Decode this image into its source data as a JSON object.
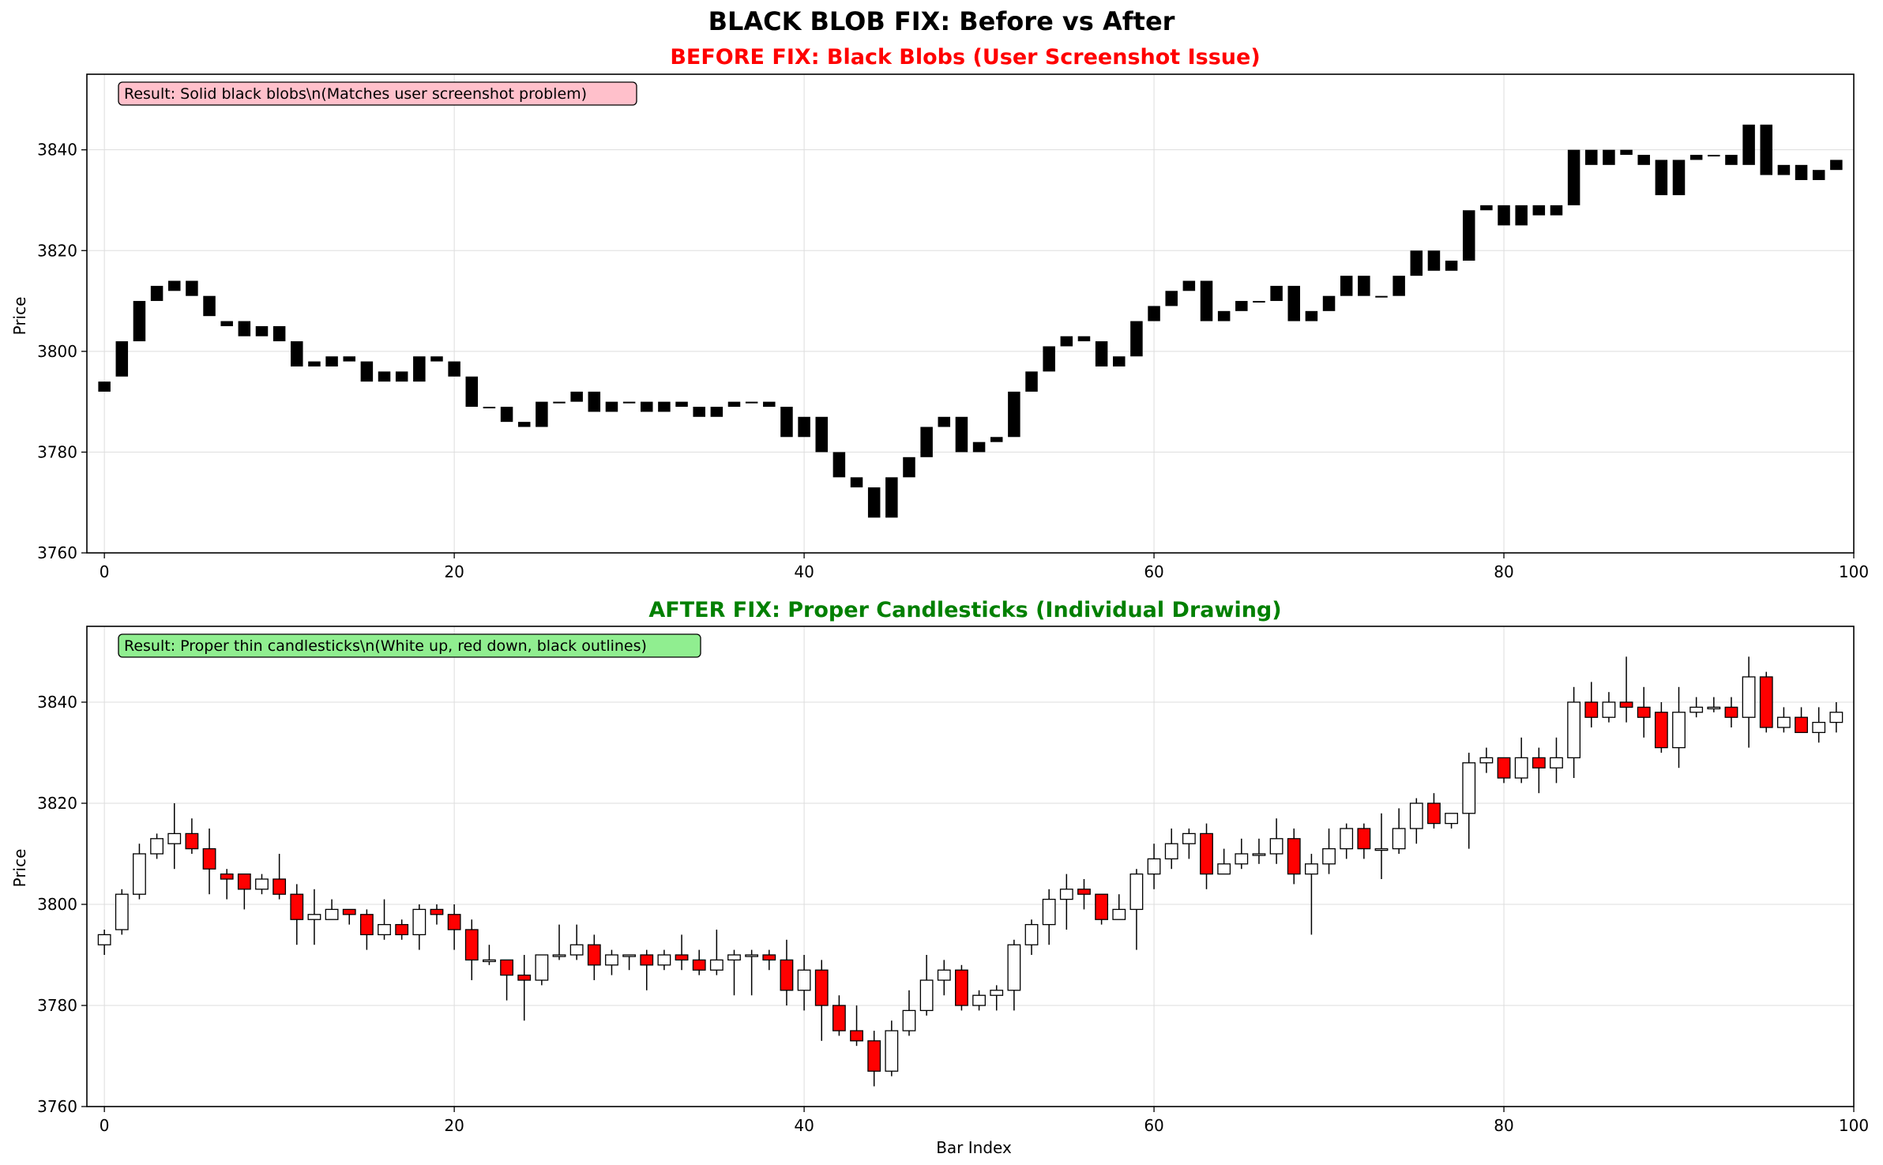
{
  "figure_title": "BLACK BLOB FIX: Before vs After",
  "colors": {
    "up_fill": "#ffffff",
    "down_fill": "#ff0000",
    "outline": "#000000",
    "before_fill": "#000000",
    "before_title": "#ff0000",
    "after_title": "#008000",
    "before_box": "#ffc0cb",
    "after_box": "#90ee90",
    "grid": "#dddddd"
  },
  "chart_data": [
    {
      "type": "candlestick",
      "title": "BEFORE FIX: Black Blobs (User Screenshot Issue)",
      "xlabel": "",
      "ylabel": "Price",
      "xlim": [
        -1,
        100
      ],
      "ylim": [
        3760,
        3855
      ],
      "xticks": [
        0,
        20,
        40,
        60,
        80,
        100
      ],
      "yticks": [
        3760,
        3780,
        3800,
        3820,
        3840
      ],
      "grid": true,
      "annotation": {
        "text": "Result: Solid black blobs\\n(Matches user screenshot problem)",
        "position": "top-left"
      },
      "style": "solid-black-bodies-no-wicks"
    },
    {
      "type": "candlestick",
      "title": "AFTER FIX: Proper Candlesticks (Individual Drawing)",
      "xlabel": "Bar Index",
      "ylabel": "Price",
      "xlim": [
        -1,
        100
      ],
      "ylim": [
        3760,
        3855
      ],
      "xticks": [
        0,
        20,
        40,
        60,
        80,
        100
      ],
      "yticks": [
        3760,
        3780,
        3800,
        3820,
        3840
      ],
      "grid": true,
      "annotation": {
        "text": "Result: Proper thin candlesticks\\n(White up, red down, black outlines)",
        "position": "top-left"
      },
      "style": "white-up-red-down-black-outline"
    }
  ],
  "ohlc": [
    [
      3792,
      3794,
      3790,
      3795
    ],
    [
      3795,
      3802,
      3794,
      3803
    ],
    [
      3802,
      3810,
      3801,
      3812
    ],
    [
      3810,
      3813,
      3809,
      3814
    ],
    [
      3812,
      3814,
      3807,
      3820
    ],
    [
      3814,
      3811,
      3810,
      3817
    ],
    [
      3811,
      3807,
      3802,
      3815
    ],
    [
      3806,
      3805,
      3801,
      3807
    ],
    [
      3806,
      3803,
      3799,
      3806
    ],
    [
      3803,
      3805,
      3802,
      3806
    ],
    [
      3805,
      3802,
      3801,
      3810
    ],
    [
      3802,
      3797,
      3792,
      3804
    ],
    [
      3797,
      3798,
      3792,
      3803
    ],
    [
      3797,
      3799,
      3797,
      3801
    ],
    [
      3799,
      3798,
      3796,
      3799
    ],
    [
      3798,
      3794,
      3791,
      3799
    ],
    [
      3794,
      3796,
      3793,
      3801
    ],
    [
      3796,
      3794,
      3793,
      3797
    ],
    [
      3794,
      3799,
      3791,
      3800
    ],
    [
      3799,
      3798,
      3796,
      3800
    ],
    [
      3798,
      3795,
      3791,
      3800
    ],
    [
      3795,
      3789,
      3785,
      3797
    ],
    [
      3789,
      3789,
      3788,
      3792
    ],
    [
      3789,
      3786,
      3781,
      3789
    ],
    [
      3786,
      3785,
      3777,
      3790
    ],
    [
      3785,
      3790,
      3784,
      3790
    ],
    [
      3790,
      3790,
      3789,
      3796
    ],
    [
      3790,
      3792,
      3789,
      3796
    ],
    [
      3792,
      3788,
      3785,
      3794
    ],
    [
      3788,
      3790,
      3786,
      3791
    ],
    [
      3790,
      3790,
      3787,
      3790
    ],
    [
      3790,
      3788,
      3783,
      3791
    ],
    [
      3788,
      3790,
      3787,
      3791
    ],
    [
      3790,
      3789,
      3787,
      3794
    ],
    [
      3789,
      3787,
      3786,
      3791
    ],
    [
      3787,
      3789,
      3786,
      3795
    ],
    [
      3789,
      3790,
      3782,
      3791
    ],
    [
      3790,
      3790,
      3782,
      3791
    ],
    [
      3790,
      3789,
      3787,
      3791
    ],
    [
      3789,
      3783,
      3780,
      3793
    ],
    [
      3783,
      3787,
      3779,
      3790
    ],
    [
      3787,
      3780,
      3773,
      3789
    ],
    [
      3780,
      3775,
      3774,
      3782
    ],
    [
      3775,
      3773,
      3772,
      3780
    ],
    [
      3773,
      3767,
      3764,
      3775
    ],
    [
      3767,
      3775,
      3766,
      3777
    ],
    [
      3775,
      3779,
      3774,
      3783
    ],
    [
      3779,
      3785,
      3778,
      3790
    ],
    [
      3785,
      3787,
      3782,
      3789
    ],
    [
      3787,
      3780,
      3779,
      3788
    ],
    [
      3780,
      3782,
      3779,
      3783
    ],
    [
      3782,
      3783,
      3779,
      3784
    ],
    [
      3783,
      3792,
      3779,
      3793
    ],
    [
      3792,
      3796,
      3790,
      3797
    ],
    [
      3796,
      3801,
      3792,
      3803
    ],
    [
      3801,
      3803,
      3795,
      3806
    ],
    [
      3803,
      3802,
      3799,
      3805
    ],
    [
      3802,
      3797,
      3796,
      3802
    ],
    [
      3797,
      3799,
      3797,
      3802
    ],
    [
      3799,
      3806,
      3791,
      3807
    ],
    [
      3806,
      3809,
      3803,
      3812
    ],
    [
      3809,
      3812,
      3807,
      3815
    ],
    [
      3812,
      3814,
      3809,
      3815
    ],
    [
      3814,
      3806,
      3803,
      3816
    ],
    [
      3806,
      3808,
      3806,
      3811
    ],
    [
      3808,
      3810,
      3807,
      3813
    ],
    [
      3810,
      3810,
      3808,
      3813
    ],
    [
      3810,
      3813,
      3808,
      3817
    ],
    [
      3813,
      3806,
      3804,
      3815
    ],
    [
      3806,
      3808,
      3794,
      3810
    ],
    [
      3808,
      3811,
      3806,
      3815
    ],
    [
      3811,
      3815,
      3809,
      3816
    ],
    [
      3815,
      3811,
      3809,
      3816
    ],
    [
      3811,
      3811,
      3805,
      3818
    ],
    [
      3811,
      3815,
      3810,
      3819
    ],
    [
      3815,
      3820,
      3812,
      3821
    ],
    [
      3820,
      3816,
      3815,
      3822
    ],
    [
      3816,
      3818,
      3815,
      3818
    ],
    [
      3818,
      3828,
      3811,
      3830
    ],
    [
      3828,
      3829,
      3826,
      3831
    ],
    [
      3829,
      3825,
      3824,
      3829
    ],
    [
      3825,
      3829,
      3824,
      3833
    ],
    [
      3829,
      3827,
      3822,
      3831
    ],
    [
      3827,
      3829,
      3824,
      3833
    ],
    [
      3829,
      3840,
      3825,
      3843
    ],
    [
      3840,
      3837,
      3835,
      3844
    ],
    [
      3837,
      3840,
      3836,
      3842
    ],
    [
      3840,
      3839,
      3836,
      3849
    ],
    [
      3839,
      3837,
      3833,
      3843
    ],
    [
      3838,
      3831,
      3830,
      3840
    ],
    [
      3831,
      3838,
      3827,
      3843
    ],
    [
      3838,
      3839,
      3837,
      3841
    ],
    [
      3839,
      3839,
      3838,
      3841
    ],
    [
      3839,
      3837,
      3835,
      3841
    ],
    [
      3837,
      3845,
      3831,
      3849
    ],
    [
      3845,
      3835,
      3834,
      3846
    ],
    [
      3835,
      3837,
      3834,
      3839
    ],
    [
      3837,
      3834,
      3834,
      3839
    ],
    [
      3834,
      3836,
      3832,
      3839
    ],
    [
      3836,
      3838,
      3834,
      3840
    ]
  ]
}
